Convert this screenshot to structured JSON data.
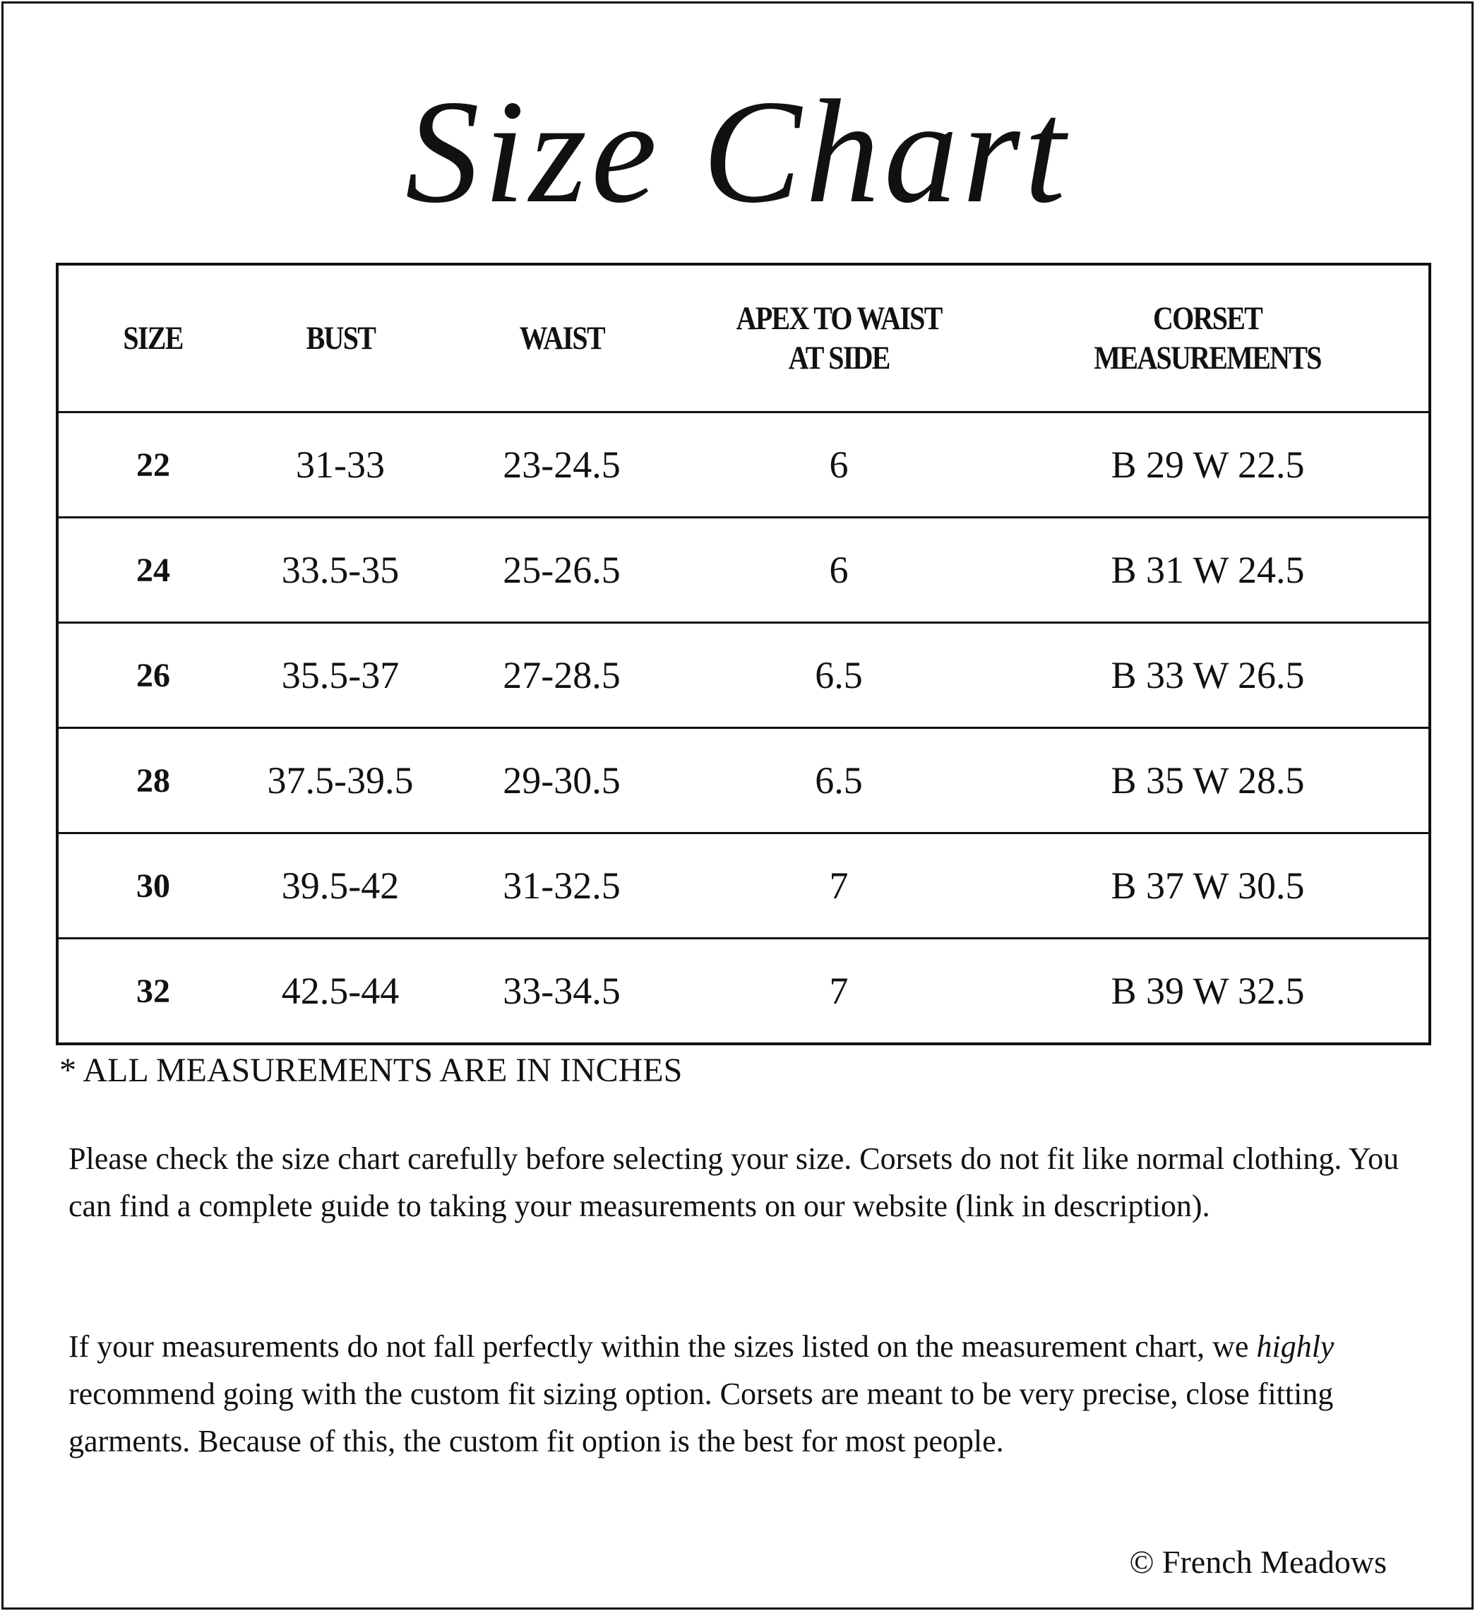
{
  "title": "Size Chart",
  "table": {
    "headers": [
      "SIZE",
      "BUST",
      "WAIST",
      "APEX TO WAIST AT SIDE",
      "CORSET MEASUREMENTS"
    ],
    "rows": [
      [
        "22",
        "31-33",
        "23-24.5",
        "6",
        "B 29 W 22.5"
      ],
      [
        "24",
        "33.5-35",
        "25-26.5",
        "6",
        "B 31 W 24.5"
      ],
      [
        "26",
        "35.5-37",
        "27-28.5",
        "6.5",
        "B 33 W 26.5"
      ],
      [
        "28",
        "37.5-39.5",
        "29-30.5",
        "6.5",
        "B 35 W 28.5"
      ],
      [
        "30",
        "39.5-42",
        "31-32.5",
        "7",
        "B 37 W 30.5"
      ],
      [
        "32",
        "42.5-44",
        "33-34.5",
        "7",
        "B 39 W 32.5"
      ]
    ]
  },
  "note": "* ALL MEASUREMENTS ARE IN INCHES",
  "paragraph1": "Please check the size chart carefully before selecting your size. Corsets do not fit like normal clothing. You can find a complete guide to taking your measurements on our website (link in description).",
  "paragraph2": {
    "before": "If your measurements do not fall perfectly within the sizes listed on the measurement chart, we ",
    "emphasis": "highly",
    "after": " recommend going with the custom fit sizing option. Corsets are meant to be very precise, close fitting garments. Because of this, the custom fit option is the best for most people."
  },
  "copyright": "© French Meadows"
}
